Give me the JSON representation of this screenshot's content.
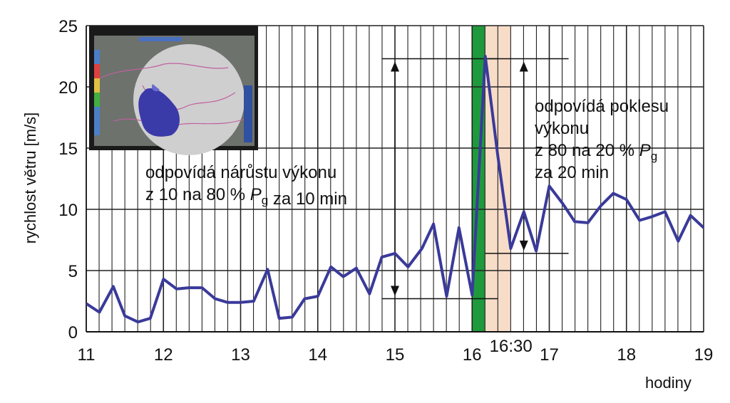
{
  "chart_data": {
    "type": "line",
    "ylabel": "rychlost větru [m/s]",
    "xlabel": "hodiny",
    "xlim": [
      11,
      19
    ],
    "ylim": [
      0,
      25
    ],
    "x_ticks": [
      "11",
      "12",
      "13",
      "14",
      "15",
      "16",
      "17",
      "18",
      "19"
    ],
    "y_ticks": [
      "0",
      "5",
      "10",
      "15",
      "20",
      "25"
    ],
    "grid": true,
    "series": [
      {
        "color": "#3a3a9a",
        "points": [
          [
            11.0,
            2.3
          ],
          [
            11.17,
            1.6
          ],
          [
            11.35,
            3.7
          ],
          [
            11.5,
            1.3
          ],
          [
            11.67,
            0.8
          ],
          [
            11.83,
            1.1
          ],
          [
            12.0,
            4.3
          ],
          [
            12.17,
            3.5
          ],
          [
            12.33,
            3.6
          ],
          [
            12.5,
            3.6
          ],
          [
            12.67,
            2.7
          ],
          [
            12.83,
            2.4
          ],
          [
            13.0,
            2.4
          ],
          [
            13.17,
            2.5
          ],
          [
            13.35,
            5.1
          ],
          [
            13.5,
            1.1
          ],
          [
            13.67,
            1.2
          ],
          [
            13.83,
            2.7
          ],
          [
            14.0,
            2.9
          ],
          [
            14.17,
            5.3
          ],
          [
            14.33,
            4.5
          ],
          [
            14.5,
            5.2
          ],
          [
            14.67,
            3.1
          ],
          [
            14.83,
            6.1
          ],
          [
            15.0,
            6.4
          ],
          [
            15.17,
            5.3
          ],
          [
            15.35,
            6.8
          ],
          [
            15.5,
            8.8
          ],
          [
            15.67,
            2.9
          ],
          [
            15.83,
            8.5
          ],
          [
            16.0,
            3.0
          ],
          [
            16.17,
            22.5
          ],
          [
            16.33,
            14.5
          ],
          [
            16.5,
            6.8
          ],
          [
            16.67,
            9.8
          ],
          [
            16.83,
            6.6
          ],
          [
            17.0,
            11.9
          ],
          [
            17.17,
            10.5
          ],
          [
            17.33,
            9.0
          ],
          [
            17.5,
            8.9
          ],
          [
            17.67,
            10.3
          ],
          [
            17.83,
            11.3
          ],
          [
            18.0,
            10.8
          ],
          [
            18.17,
            9.1
          ],
          [
            18.33,
            9.4
          ],
          [
            18.5,
            9.8
          ],
          [
            18.67,
            7.4
          ],
          [
            18.83,
            9.5
          ],
          [
            19.0,
            8.5
          ]
        ]
      }
    ],
    "bands": [
      {
        "x0": 16.0,
        "x1": 16.17,
        "color": "#1e9a3c"
      },
      {
        "x0": 16.17,
        "x1": 16.5,
        "color": "#f7dcc8"
      }
    ],
    "band_label": "16:30",
    "annotations": [
      {
        "lines": [
          "odpovídá nárůstu výkonu",
          "z 10 na 80 % |P_g| za 10 min"
        ],
        "placement": "center-left"
      },
      {
        "lines": [
          "odpovídá poklesu",
          "výkonu",
          "z 80 na 20 % |P_g|",
          "za 20 min"
        ],
        "placement": "top-right"
      }
    ],
    "arrows": [
      {
        "x": 15.0,
        "y_low": 2.7,
        "y_high": 22.3,
        "ref_x0": 14.83,
        "ref_x1": 16.33
      },
      {
        "x": 16.67,
        "y_low": 6.4,
        "y_high": 22.3,
        "ref_x0": 16.17,
        "ref_x1": 17.25
      }
    ],
    "inset": {
      "type": "radar-image",
      "placement": "top-left"
    }
  }
}
